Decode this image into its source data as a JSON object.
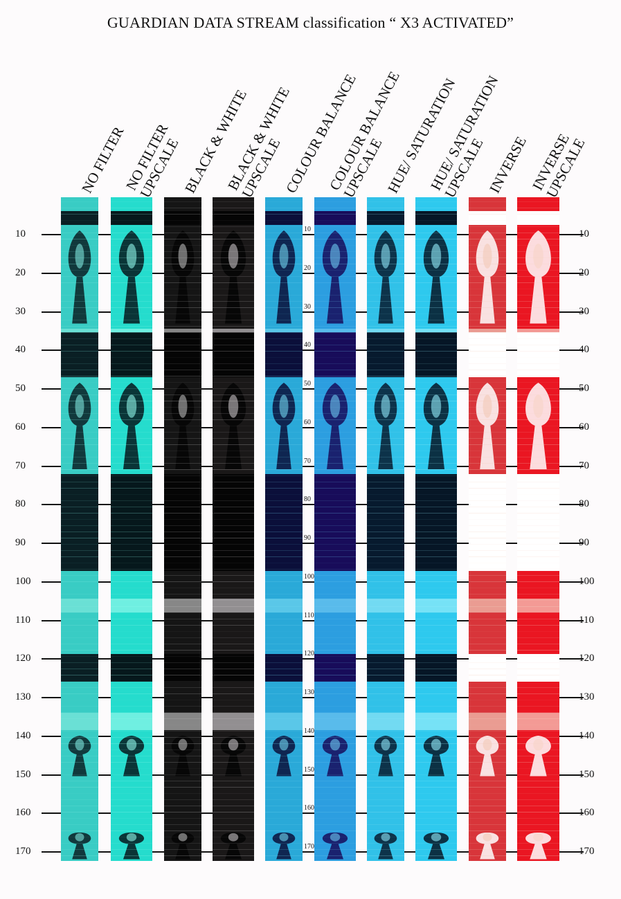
{
  "title": "GUARDIAN DATA STREAM classification “ X3 ACTIVATED”",
  "columns": [
    {
      "id": "nofilter",
      "label_lines": [
        "NO FILTER"
      ],
      "palette": {
        "bg": "#39ccc4",
        "dark": "#0a1f24",
        "light": "#7fe8dd"
      }
    },
    {
      "id": "nofilter-up",
      "label_lines": [
        "NO FILTER",
        "UPSCALE"
      ],
      "palette": {
        "bg": "#25dccd",
        "dark": "#06181c",
        "light": "#8ff7ea"
      }
    },
    {
      "id": "bw",
      "label_lines": [
        "BLACK & WHITE"
      ],
      "palette": {
        "bg": "#151515",
        "dark": "#050505",
        "light": "#b8b8b8"
      }
    },
    {
      "id": "bw-up",
      "label_lines": [
        "BLACK & WHITE",
        "UPSCALE"
      ],
      "palette": {
        "bg": "#1a1818",
        "dark": "#050505",
        "light": "#c6c2c4"
      }
    },
    {
      "id": "cb",
      "label_lines": [
        "COLOUR BALANCE"
      ],
      "palette": {
        "bg": "#2aa9d8",
        "dark": "#0b0f3a",
        "light": "#6fd4ef"
      }
    },
    {
      "id": "cb-up",
      "label_lines": [
        "COLOUR BALANCE",
        "UPSCALE"
      ],
      "palette": {
        "bg": "#2c9ee0",
        "dark": "#180c5a",
        "light": "#6cc8f0"
      }
    },
    {
      "id": "hs",
      "label_lines": [
        "HUE/ SATURATION"
      ],
      "palette": {
        "bg": "#31c1e8",
        "dark": "#071a2e",
        "light": "#8ee4f6"
      }
    },
    {
      "id": "hs-up",
      "label_lines": [
        "HUE/ SATURATION",
        "UPSCALE"
      ],
      "palette": {
        "bg": "#2ec9ee",
        "dark": "#061626",
        "light": "#95ecfa"
      }
    },
    {
      "id": "inv",
      "label_lines": [
        "INVERSE"
      ],
      "palette": {
        "bg": "#d8353a",
        "dark": "#ffffff",
        "light": "#f2c9b8"
      }
    },
    {
      "id": "inv-up",
      "label_lines": [
        "INVERSE",
        "UPSCALE"
      ],
      "palette": {
        "bg": "#ea1622",
        "dark": "#ffffff",
        "light": "#f6d3c6"
      }
    }
  ],
  "ticks": [
    "10",
    "20",
    "30",
    "40",
    "50",
    "60",
    "70",
    "80",
    "90",
    "100",
    "110",
    "120",
    "130",
    "140",
    "150",
    "160",
    "170"
  ]
}
